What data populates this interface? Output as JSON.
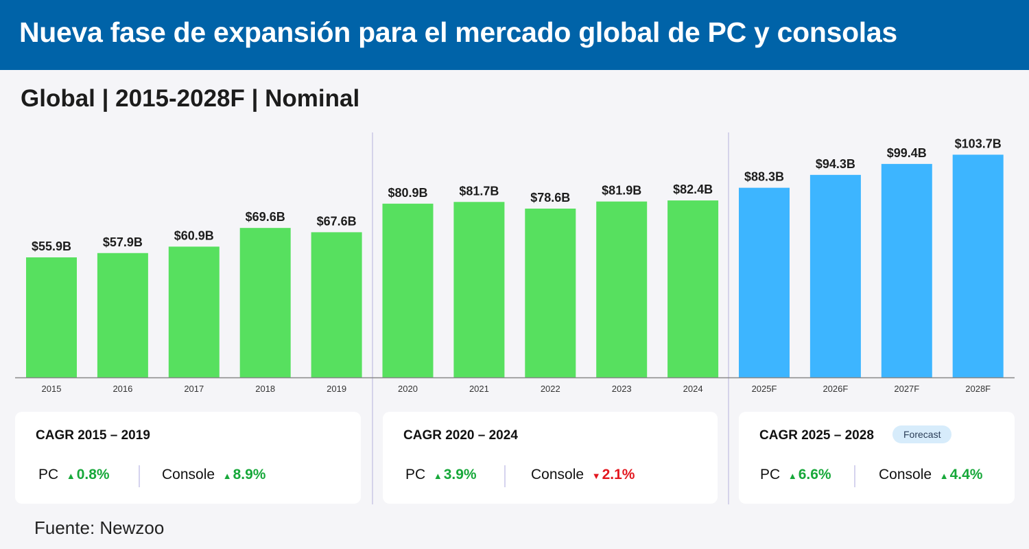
{
  "header": {
    "title": "Nueva fase de expansión para el mercado global de PC y consolas"
  },
  "subtitle": "Global | 2015-2028F | Nominal",
  "chart_data": {
    "type": "bar",
    "categories": [
      "2015",
      "2016",
      "2017",
      "2018",
      "2019",
      "2020",
      "2021",
      "2022",
      "2023",
      "2024",
      "2025F",
      "2026F",
      "2027F",
      "2028F"
    ],
    "values": [
      55.9,
      57.9,
      60.9,
      69.6,
      67.6,
      80.9,
      81.7,
      78.6,
      81.9,
      82.4,
      88.3,
      94.3,
      99.4,
      103.7
    ],
    "labels": [
      "$55.9B",
      "$57.9B",
      "$60.9B",
      "$69.6B",
      "$67.6B",
      "$80.9B",
      "$81.7B",
      "$78.6B",
      "$81.9B",
      "$82.4B",
      "$88.3B",
      "$94.3B",
      "$99.4B",
      "$103.7B"
    ],
    "forecast": [
      false,
      false,
      false,
      false,
      false,
      false,
      false,
      false,
      false,
      false,
      true,
      true,
      true,
      true
    ],
    "unit": "USD billions",
    "ylim": [
      0,
      110
    ],
    "colors": {
      "actual": "#57e05f",
      "forecast": "#3db5ff"
    },
    "grid": false
  },
  "cards": [
    {
      "title": "CAGR 2015 – 2019",
      "pc_label": "PC",
      "pc_value": "0.8%",
      "pc_dir": "up",
      "console_label": "Console",
      "console_value": "8.9%",
      "console_dir": "up"
    },
    {
      "title": "CAGR 2020 – 2024",
      "pc_label": "PC",
      "pc_value": "3.9%",
      "pc_dir": "up",
      "console_label": "Console",
      "console_value": "2.1%",
      "console_dir": "down"
    },
    {
      "title": "CAGR 2025 – 2028",
      "badge": "Forecast",
      "pc_label": "PC",
      "pc_value": "6.6%",
      "pc_dir": "up",
      "console_label": "Console",
      "console_value": "4.4%",
      "console_dir": "up"
    }
  ],
  "source": "Fuente: Newzoo"
}
